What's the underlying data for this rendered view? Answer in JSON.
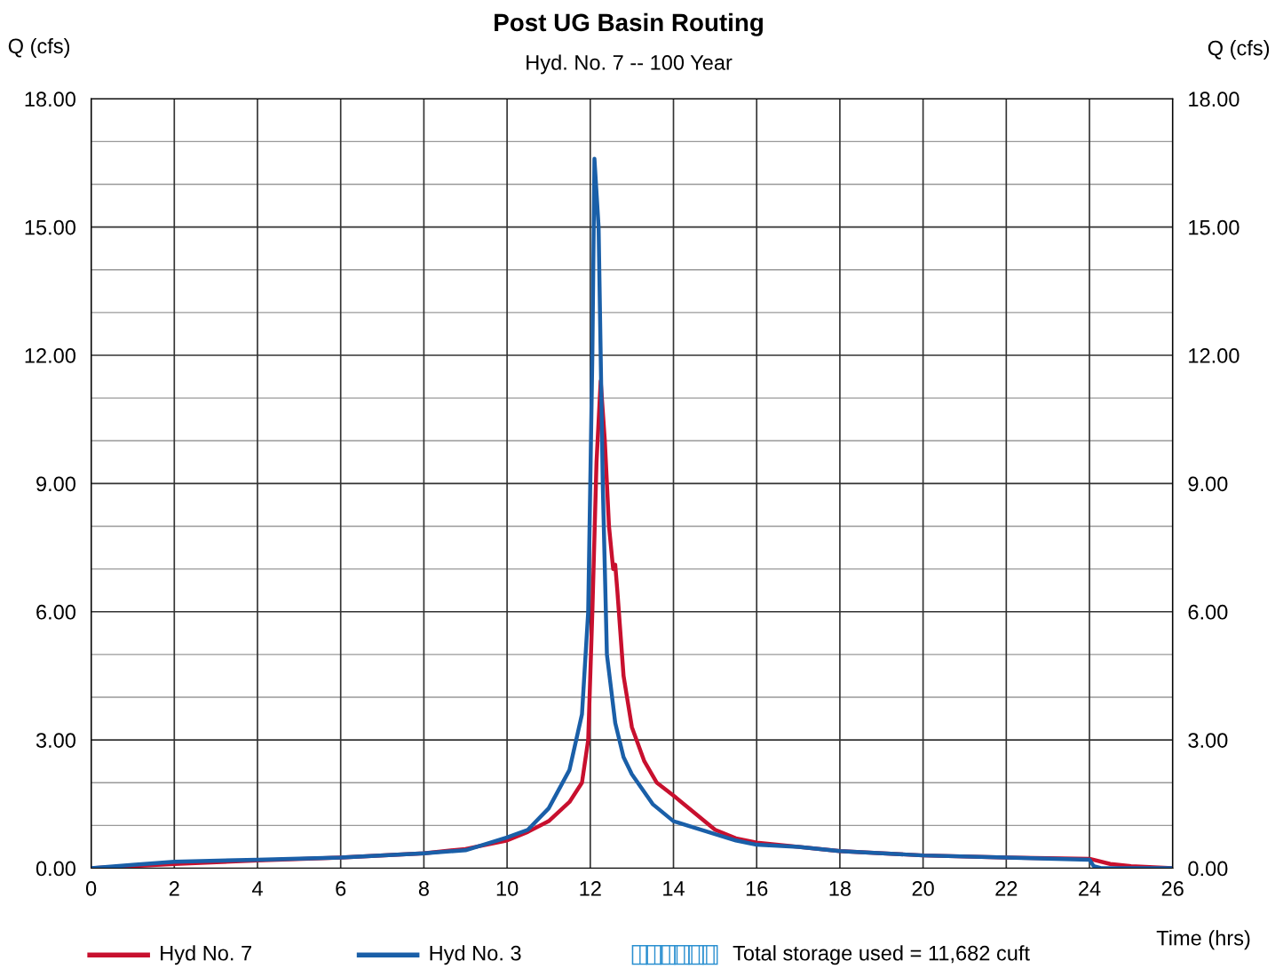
{
  "chart_data": {
    "type": "line",
    "title": "Post UG Basin Routing",
    "subtitle": "Hyd. No. 7 -- 100 Year",
    "xlabel": "Time (hrs)",
    "ylabel": "Q (cfs)",
    "y2label": "Q (cfs)",
    "xlim": [
      0,
      26
    ],
    "xticks": [
      0,
      2,
      4,
      6,
      8,
      10,
      12,
      14,
      16,
      18,
      20,
      22,
      24,
      26
    ],
    "ylim": [
      0,
      18
    ],
    "yticks": [
      {
        "value": 0,
        "label": "0.00"
      },
      {
        "value": 3,
        "label": "3.00"
      },
      {
        "value": 6,
        "label": "6.00"
      },
      {
        "value": 9,
        "label": "9.00"
      },
      {
        "value": 12,
        "label": "12.00"
      },
      {
        "value": 15,
        "label": "15.00"
      },
      {
        "value": 18,
        "label": "18.00"
      }
    ],
    "y2lim": [
      0,
      18
    ],
    "y2ticks": [
      {
        "value": 0,
        "label": "0.00"
      },
      {
        "value": 3,
        "label": "3.00"
      },
      {
        "value": 6,
        "label": "6.00"
      },
      {
        "value": 9,
        "label": "9.00"
      },
      {
        "value": 12,
        "label": "12.00"
      },
      {
        "value": 15,
        "label": "15.00"
      },
      {
        "value": 18,
        "label": "18.00"
      }
    ],
    "grid": true,
    "legend": "bottom",
    "line_style": "solid",
    "marker": "none",
    "annotations": [
      "Total storage used = 11,682 cuft"
    ],
    "series": [
      {
        "name": "Hyd No. 7",
        "color": "#c8102e",
        "x": [
          0,
          2,
          4,
          6,
          8,
          9,
          10,
          10.5,
          11,
          11.5,
          11.8,
          11.95,
          12.05,
          12.15,
          12.25,
          12.35,
          12.45,
          12.55,
          12.6,
          12.65,
          12.8,
          13,
          13.3,
          13.6,
          14,
          14.5,
          15,
          15.5,
          16,
          18,
          20,
          22,
          24,
          24.5,
          25,
          26
        ],
        "values": [
          0,
          0.1,
          0.18,
          0.25,
          0.35,
          0.45,
          0.65,
          0.85,
          1.1,
          1.55,
          2.0,
          3.0,
          6.0,
          9.5,
          11.4,
          10.0,
          8.0,
          7.0,
          7.1,
          6.5,
          4.5,
          3.3,
          2.5,
          2.0,
          1.7,
          1.3,
          0.9,
          0.7,
          0.6,
          0.4,
          0.3,
          0.25,
          0.22,
          0.1,
          0.05,
          0
        ]
      },
      {
        "name": "Hyd No. 3",
        "color": "#1a5fa8",
        "x": [
          0,
          1,
          2,
          4,
          6,
          8,
          9,
          10,
          10.5,
          11,
          11.5,
          11.8,
          11.95,
          12.05,
          12.1,
          12.2,
          12.3,
          12.4,
          12.6,
          12.8,
          13,
          13.5,
          14,
          14.5,
          15,
          15.5,
          16,
          17,
          18,
          20,
          22,
          24,
          24.1,
          24.3,
          26
        ],
        "values": [
          0,
          0.08,
          0.15,
          0.2,
          0.25,
          0.35,
          0.42,
          0.72,
          0.9,
          1.4,
          2.3,
          3.6,
          6.0,
          12.0,
          16.6,
          15.0,
          9.0,
          5.0,
          3.4,
          2.6,
          2.2,
          1.5,
          1.1,
          0.95,
          0.8,
          0.65,
          0.55,
          0.5,
          0.4,
          0.3,
          0.25,
          0.2,
          0.05,
          0,
          0
        ]
      }
    ]
  }
}
